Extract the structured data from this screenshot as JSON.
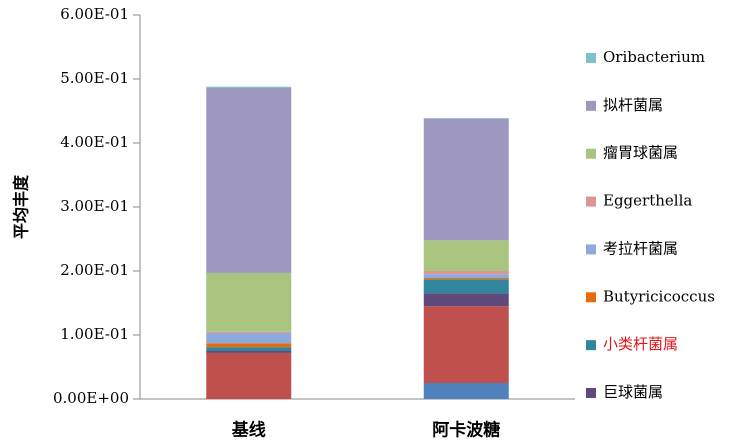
{
  "chart_data": {
    "type": "stacked_bar",
    "y_label": "平均丰度",
    "categories": [
      "基线",
      "阿卡波糖"
    ],
    "ylim": [
      0,
      0.6
    ],
    "yticks": [
      {
        "value": 0,
        "label": "0.00E+00"
      },
      {
        "value": 0.1,
        "label": "1.00E-01"
      },
      {
        "value": 0.2,
        "label": "2.00E-01"
      },
      {
        "value": 0.3,
        "label": "3.00E-01"
      },
      {
        "value": 0.4,
        "label": "4.00E-01"
      },
      {
        "value": 0.5,
        "label": "5.00E-01"
      },
      {
        "value": 0.6,
        "label": "6.00E-01"
      }
    ],
    "grid": false,
    "legend": "right",
    "series": [
      {
        "color": "#4f81bd",
        "values": [
          0,
          0.025
        ]
      },
      {
        "color": "#c0504d",
        "values": [
          0.072,
          0.12
        ]
      },
      {
        "name": "巨球菌属",
        "color": "#604a7b",
        "values": [
          0.003,
          0.02
        ]
      },
      {
        "name": "小类杆菌属",
        "color": "#31859c",
        "label_color": "#e0161d",
        "values": [
          0.006,
          0.022
        ]
      },
      {
        "name": "Butyricicoccus",
        "color": "#e46c0a",
        "values": [
          0.006,
          0.002
        ]
      },
      {
        "name": "考拉杆菌属",
        "color": "#8ea9db",
        "values": [
          0.016,
          0.006
        ]
      },
      {
        "name": "Eggerthella",
        "color": "#d99694",
        "values": [
          0.002,
          0.005
        ]
      },
      {
        "name": "瘤胃球菌属",
        "color": "#a9c47f",
        "values": [
          0.092,
          0.048
        ]
      },
      {
        "name": "拟杆菌属",
        "color": "#9e97bf",
        "values": [
          0.289,
          0.19
        ]
      },
      {
        "name": "Oribacterium",
        "color": "#7fbfcf",
        "values": [
          0.002,
          0.001
        ]
      }
    ]
  }
}
